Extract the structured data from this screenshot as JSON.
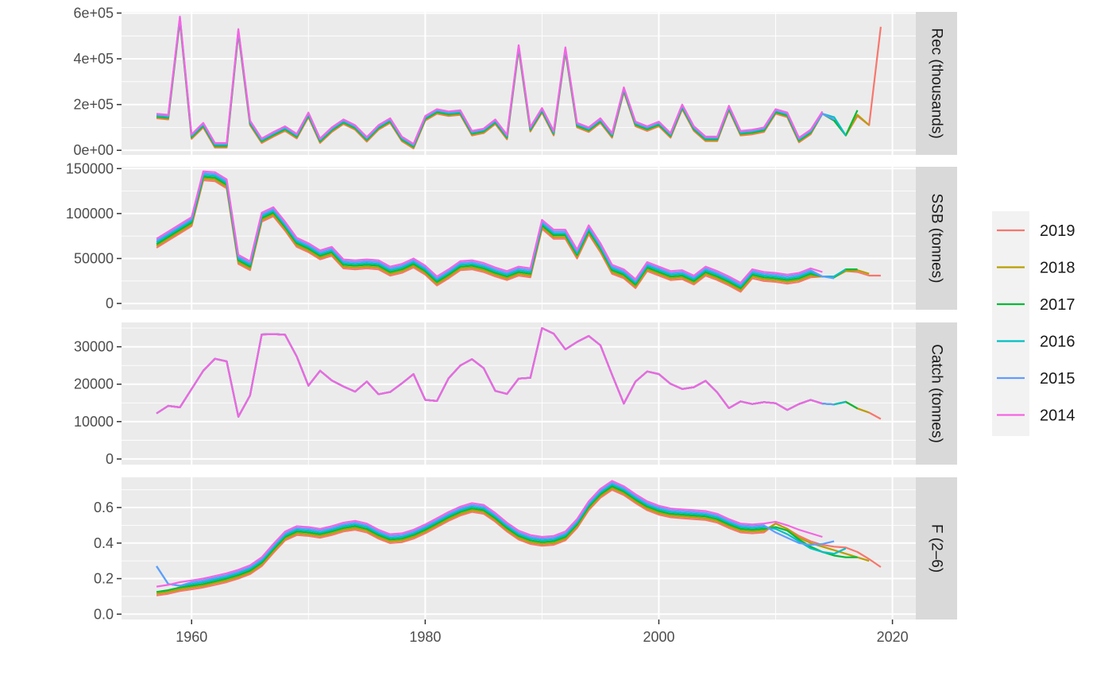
{
  "chart_data": {
    "type": "line",
    "x_ticks": [
      1960,
      1980,
      2000,
      2020
    ],
    "xlim": [
      1954,
      2022
    ],
    "legend": {
      "placement": "right",
      "entries": [
        {
          "name": "2019",
          "color": "#F8766D"
        },
        {
          "name": "2018",
          "color": "#B79F00"
        },
        {
          "name": "2017",
          "color": "#00BA38"
        },
        {
          "name": "2016",
          "color": "#00BFC4"
        },
        {
          "name": "2015",
          "color": "#619CFF"
        },
        {
          "name": "2014",
          "color": "#F564E3"
        }
      ]
    },
    "panels": [
      {
        "label": "Rec (thousands)",
        "ylim": [
          -20000,
          605000
        ],
        "y_ticks": [
          {
            "value": 0,
            "label": "0e+00"
          },
          {
            "value": 200000,
            "label": "2e+05"
          },
          {
            "value": 400000,
            "label": "4e+05"
          },
          {
            "value": 600000,
            "label": "6e+05"
          }
        ],
        "base_x": [
          1957,
          1958,
          1959,
          1960,
          1961,
          1962,
          1963,
          1964,
          1965,
          1966,
          1967,
          1968,
          1969,
          1970,
          1971,
          1972,
          1973,
          1974,
          1975,
          1976,
          1977,
          1978,
          1979,
          1980,
          1981,
          1982,
          1983,
          1984,
          1985,
          1986,
          1987,
          1988,
          1989,
          1990,
          1991,
          1992,
          1993,
          1994,
          1995,
          1996,
          1997,
          1998,
          1999,
          2000,
          2001,
          2002,
          2003,
          2004,
          2005,
          2006,
          2007,
          2008,
          2009,
          2010,
          2011,
          2012,
          2013,
          2014
        ],
        "base_y": [
          150000,
          145000,
          575000,
          60000,
          110000,
          22000,
          22000,
          520000,
          120000,
          42000,
          70000,
          95000,
          62000,
          155000,
          42000,
          90000,
          125000,
          100000,
          48000,
          100000,
          130000,
          50000,
          18000,
          140000,
          170000,
          160000,
          165000,
          75000,
          85000,
          125000,
          58000,
          450000,
          92000,
          175000,
          75000,
          440000,
          110000,
          90000,
          130000,
          65000,
          265000,
          115000,
          95000,
          115000,
          65000,
          190000,
          95000,
          50000,
          50000,
          185000,
          75000,
          80000,
          90000,
          170000,
          155000,
          45000,
          80000,
          160000
        ],
        "extensions": {
          "2019": {
            "x": [
              2014,
              2015,
              2016,
              2017,
              2018,
              2019
            ],
            "y": [
              160000,
              130000,
              65000,
              150000,
              110000,
              540000
            ]
          },
          "2018": {
            "x": [
              2014,
              2015,
              2016,
              2017,
              2018
            ],
            "y": [
              160000,
              130000,
              65000,
              155000,
              110000
            ]
          },
          "2017": {
            "x": [
              2014,
              2015,
              2016,
              2017
            ],
            "y": [
              160000,
              130000,
              65000,
              175000
            ]
          },
          "2016": {
            "x": [
              2014,
              2015,
              2016
            ],
            "y": [
              160000,
              145000,
              65000
            ]
          },
          "2015": {
            "x": [
              2014,
              2015
            ],
            "y": [
              160000,
              135000
            ]
          },
          "2014": {
            "x": [],
            "y": []
          }
        },
        "spread": 4000
      },
      {
        "label": "SSB (tonnes)",
        "ylim": [
          -7000,
          152000
        ],
        "y_ticks": [
          {
            "value": 0,
            "label": "0"
          },
          {
            "value": 50000,
            "label": "50000"
          },
          {
            "value": 100000,
            "label": "100000"
          },
          {
            "value": 150000,
            "label": "150000"
          }
        ],
        "base_x": [
          1957,
          1958,
          1959,
          1960,
          1961,
          1962,
          1963,
          1964,
          1965,
          1966,
          1967,
          1968,
          1969,
          1970,
          1971,
          1972,
          1973,
          1974,
          1975,
          1976,
          1977,
          1978,
          1979,
          1980,
          1981,
          1982,
          1983,
          1984,
          1985,
          1986,
          1987,
          1988,
          1989,
          1990,
          1991,
          1992,
          1993,
          1994,
          1995,
          1996,
          1997,
          1998,
          1999,
          2000,
          2001,
          2002,
          2003,
          2004,
          2005,
          2006,
          2007,
          2008,
          2009,
          2010,
          2011,
          2012,
          2013,
          2014
        ],
        "base_y": [
          67000,
          75000,
          83000,
          91000,
          142000,
          141000,
          133000,
          49000,
          42000,
          96000,
          102000,
          86000,
          68000,
          62000,
          54000,
          58000,
          44000,
          43000,
          44000,
          43000,
          36000,
          39000,
          45000,
          37000,
          25000,
          33000,
          42000,
          43000,
          40000,
          35000,
          31000,
          36000,
          34000,
          88000,
          77000,
          77000,
          55000,
          82000,
          62000,
          38000,
          33000,
          22000,
          41000,
          36000,
          31000,
          32000,
          26000,
          36000,
          31000,
          25000,
          18000,
          33000,
          30000,
          29000,
          27000,
          29000,
          34000,
          30000
        ],
        "extensions": {
          "2019": {
            "x": [
              2014,
              2015,
              2016,
              2017,
              2018,
              2019
            ],
            "y": [
              30000,
              29000,
              36000,
              35000,
              31000,
              31000
            ]
          },
          "2018": {
            "x": [
              2014,
              2015,
              2016,
              2017,
              2018
            ],
            "y": [
              30000,
              29000,
              36000,
              37000,
              33000
            ]
          },
          "2017": {
            "x": [
              2014,
              2015,
              2016,
              2017
            ],
            "y": [
              30000,
              29000,
              38000,
              38000
            ]
          },
          "2016": {
            "x": [
              2014,
              2015,
              2016
            ],
            "y": [
              30000,
              30000,
              38000
            ]
          },
          "2015": {
            "x": [
              2014,
              2015
            ],
            "y": [
              30000,
              28000
            ]
          },
          "2014": {
            "x": [],
            "y": []
          }
        },
        "spread": 2000
      },
      {
        "label": "Catch (tonnes)",
        "ylim": [
          -1500,
          36500
        ],
        "y_ticks": [
          {
            "value": 0,
            "label": "0"
          },
          {
            "value": 10000,
            "label": "10000"
          },
          {
            "value": 20000,
            "label": "20000"
          },
          {
            "value": 30000,
            "label": "30000"
          }
        ],
        "base_x": [
          1957,
          1958,
          1959,
          1960,
          1961,
          1962,
          1963,
          1964,
          1965,
          1966,
          1967,
          1968,
          1969,
          1970,
          1971,
          1972,
          1973,
          1974,
          1975,
          1976,
          1977,
          1978,
          1979,
          1980,
          1981,
          1982,
          1983,
          1984,
          1985,
          1986,
          1987,
          1988,
          1989,
          1990,
          1991,
          1992,
          1993,
          1994,
          1995,
          1996,
          1997,
          1998,
          1999,
          2000,
          2001,
          2002,
          2003,
          2004,
          2005,
          2006,
          2007,
          2008,
          2009,
          2010,
          2011,
          2012,
          2013,
          2014
        ],
        "base_y": [
          12200,
          14200,
          13800,
          18700,
          23600,
          26800,
          26100,
          11300,
          17000,
          33300,
          33400,
          33200,
          27400,
          19600,
          23600,
          21000,
          19400,
          18000,
          20700,
          17300,
          17900,
          20200,
          22700,
          15800,
          15500,
          21600,
          25000,
          26700,
          24300,
          18200,
          17400,
          21500,
          21700,
          35000,
          33500,
          29300,
          31300,
          32900,
          30400,
          22500,
          14800,
          20700,
          23400,
          22700,
          20100,
          18700,
          19200,
          20900,
          17800,
          13600,
          15400,
          14700,
          15200,
          14900,
          13100,
          14700,
          15800,
          14800
        ],
        "extensions": {
          "2019": {
            "x": [
              2014,
              2015,
              2016,
              2017,
              2018,
              2019
            ],
            "y": [
              14800,
              14600,
              15300,
              13500,
              12400,
              10700
            ]
          },
          "2018": {
            "x": [
              2014,
              2015,
              2016,
              2017,
              2018
            ],
            "y": [
              14800,
              14600,
              15300,
              13500,
              12400
            ]
          },
          "2017": {
            "x": [
              2014,
              2015,
              2016,
              2017
            ],
            "y": [
              14800,
              14600,
              15300,
              13500
            ]
          },
          "2016": {
            "x": [
              2014,
              2015,
              2016
            ],
            "y": [
              14800,
              14600,
              15300
            ]
          },
          "2015": {
            "x": [
              2014,
              2015
            ],
            "y": [
              14800,
              14600
            ]
          },
          "2014": {
            "x": [],
            "y": []
          }
        },
        "spread": 0
      },
      {
        "label": "F (2–6)",
        "ylim": [
          -0.03,
          0.77
        ],
        "y_ticks": [
          {
            "value": 0,
            "label": "0.0"
          },
          {
            "value": 0.2,
            "label": "0.2"
          },
          {
            "value": 0.4,
            "label": "0.4"
          },
          {
            "value": 0.6,
            "label": "0.6"
          }
        ],
        "base_x": [
          1957,
          1958,
          1959,
          1960,
          1961,
          1962,
          1963,
          1964,
          1965,
          1966,
          1967,
          1968,
          1969,
          1970,
          1971,
          1972,
          1973,
          1974,
          1975,
          1976,
          1977,
          1978,
          1979,
          1980,
          1981,
          1982,
          1983,
          1984,
          1985,
          1986,
          1987,
          1988,
          1989,
          1990,
          1991,
          1992,
          1993,
          1994,
          1995,
          1996,
          1997,
          1998,
          1999,
          2000,
          2001,
          2002,
          2003,
          2004,
          2005,
          2006,
          2007,
          2008,
          2009,
          2010,
          2011,
          2012,
          2013,
          2014
        ],
        "base_y": [
          0.13,
          0.14,
          0.155,
          0.165,
          0.175,
          0.19,
          0.205,
          0.225,
          0.25,
          0.295,
          0.37,
          0.44,
          0.47,
          0.465,
          0.455,
          0.47,
          0.49,
          0.5,
          0.485,
          0.45,
          0.425,
          0.43,
          0.45,
          0.48,
          0.515,
          0.55,
          0.58,
          0.6,
          0.59,
          0.545,
          0.49,
          0.445,
          0.42,
          0.41,
          0.415,
          0.44,
          0.51,
          0.61,
          0.68,
          0.725,
          0.695,
          0.65,
          0.61,
          0.585,
          0.57,
          0.565,
          0.56,
          0.555,
          0.54,
          0.51,
          0.485,
          0.48,
          0.485,
          0.495,
          0.475,
          0.45,
          0.43,
          0.41
        ],
        "extensions": {
          "2019": {
            "x": [
              2010,
              2011,
              2012,
              2013,
              2014,
              2015,
              2016,
              2017,
              2018,
              2019
            ],
            "y": [
              0.51,
              0.48,
              0.44,
              0.41,
              0.39,
              0.38,
              0.375,
              0.35,
              0.31,
              0.265
            ]
          },
          "2018": {
            "x": [
              2010,
              2011,
              2012,
              2013,
              2014,
              2015,
              2016,
              2017,
              2018
            ],
            "y": [
              0.51,
              0.48,
              0.43,
              0.4,
              0.38,
              0.36,
              0.34,
              0.32,
              0.3
            ]
          },
          "2017": {
            "x": [
              2010,
              2011,
              2012,
              2013,
              2014,
              2015,
              2016,
              2017
            ],
            "y": [
              0.49,
              0.47,
              0.42,
              0.38,
              0.35,
              0.33,
              0.32,
              0.32
            ]
          },
          "2016": {
            "x": [
              2010,
              2011,
              2012,
              2013,
              2014,
              2015,
              2016
            ],
            "y": [
              0.48,
              0.45,
              0.41,
              0.37,
              0.35,
              0.34,
              0.37
            ]
          },
          "2015": {
            "x": [
              2010,
              2011,
              2012,
              2013,
              2014,
              2015
            ],
            "y": [
              0.46,
              0.43,
              0.4,
              0.39,
              0.395,
              0.41
            ]
          },
          "2014": {
            "x": [],
            "y": []
          }
        },
        "spread": 0.01,
        "head_override": {
          "2015": {
            "x": [
              1957,
              1958,
              1959
            ],
            "y": [
              0.27,
              0.17,
              0.16
            ]
          },
          "2016": {
            "x": [
              1957,
              1958,
              1959
            ],
            "y": [
              0.27,
              0.17,
              0.16
            ]
          }
        }
      }
    ]
  }
}
